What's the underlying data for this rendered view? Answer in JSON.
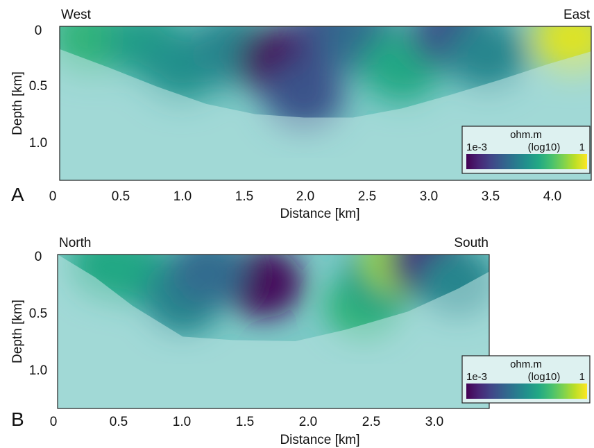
{
  "colors": {
    "viridis": [
      "#440154",
      "#482475",
      "#414487",
      "#355f8d",
      "#2a788e",
      "#21918c",
      "#22a884",
      "#44bf70",
      "#7ad151",
      "#bddf26",
      "#fde725"
    ],
    "background_fill": "#7cc9c6",
    "mask_overlay": "#bfe6e3"
  },
  "chart_data": [
    {
      "type": "heatmap",
      "panel_label": "A",
      "left_label": "West",
      "right_label": "East",
      "xlabel": "Distance [km]",
      "ylabel": "Depth [km]",
      "xlim": [
        0,
        4.35
      ],
      "ylim": [
        1.35,
        0
      ],
      "xticks": [
        0,
        0.5,
        1.0,
        1.5,
        2.0,
        2.5,
        3.0,
        3.5,
        4.0
      ],
      "xtick_labels": [
        "0",
        "0.5",
        "1.0",
        "1.5",
        "2.0",
        "2.5",
        "3.0",
        "3.5",
        "4.0"
      ],
      "yticks": [
        0,
        0.5,
        1.0
      ],
      "ytick_labels": [
        "0",
        "0.5",
        "1.0"
      ],
      "colorbar": {
        "unit": "ohm.m",
        "scale": "(log10)",
        "min_label": "1e-3",
        "max_label": "1"
      },
      "resolved_boundary": {
        "distance_km": [
          0,
          0.4,
          0.8,
          1.2,
          1.6,
          2.0,
          2.4,
          2.8,
          3.2,
          3.6,
          4.0,
          4.35
        ],
        "depth_km": [
          0.2,
          0.36,
          0.53,
          0.68,
          0.77,
          0.8,
          0.8,
          0.72,
          0.6,
          0.47,
          0.33,
          0.22
        ]
      },
      "resistivity_log10": {
        "note_scale": "0 = 1e-3 ohm.m, 1 = 1 ohm.m",
        "distance_km": [
          0.25,
          0.7,
          1.0,
          1.4,
          1.8,
          2.25,
          2.45,
          2.8,
          3.2,
          3.5,
          4.2,
          2.0
        ],
        "depth_km": [
          0.1,
          0.15,
          0.35,
          0.2,
          0.3,
          0.05,
          0.1,
          0.35,
          0.05,
          0.25,
          0.1,
          0.6
        ],
        "value": [
          0.65,
          0.55,
          0.5,
          0.45,
          0.02,
          0.2,
          0.35,
          0.6,
          0.25,
          0.45,
          0.95,
          0.25
        ]
      }
    },
    {
      "type": "heatmap",
      "panel_label": "B",
      "left_label": "North",
      "right_label": "South",
      "xlabel": "Distance [km]",
      "ylabel": "Depth [km]",
      "xlim": [
        0,
        3.45
      ],
      "ylim": [
        1.35,
        0
      ],
      "xticks": [
        0,
        0.5,
        1.0,
        1.5,
        2.0,
        2.5,
        3.0
      ],
      "xtick_labels": [
        "0",
        "0.5",
        "1.0",
        "1.5",
        "2.0",
        "2.5",
        "3.0"
      ],
      "yticks": [
        0,
        0.5,
        1.0
      ],
      "ytick_labels": [
        "0",
        "0.5",
        "1.0"
      ],
      "colorbar": {
        "unit": "ohm.m",
        "scale": "(log10)",
        "min_label": "1e-3",
        "max_label": "1"
      },
      "resolved_boundary": {
        "distance_km": [
          0,
          0.3,
          0.6,
          1.0,
          1.4,
          1.9,
          2.3,
          2.8,
          3.2,
          3.45
        ],
        "depth_km": [
          0.0,
          0.2,
          0.45,
          0.72,
          0.75,
          0.76,
          0.66,
          0.5,
          0.3,
          0.15
        ]
      },
      "resistivity_log10": {
        "note_scale": "0 = 1e-3 ohm.m, 1 = 1 ohm.m",
        "distance_km": [
          0.6,
          1.0,
          1.65,
          1.2,
          2.45,
          2.6,
          2.75,
          2.95,
          3.2,
          0.4
        ],
        "depth_km": [
          0.15,
          0.4,
          0.25,
          0.15,
          0.45,
          0.2,
          0.05,
          0.05,
          0.25,
          0.1
        ],
        "value": [
          0.55,
          0.45,
          0.02,
          0.35,
          0.65,
          0.55,
          0.85,
          0.15,
          0.45,
          0.6
        ]
      }
    }
  ]
}
